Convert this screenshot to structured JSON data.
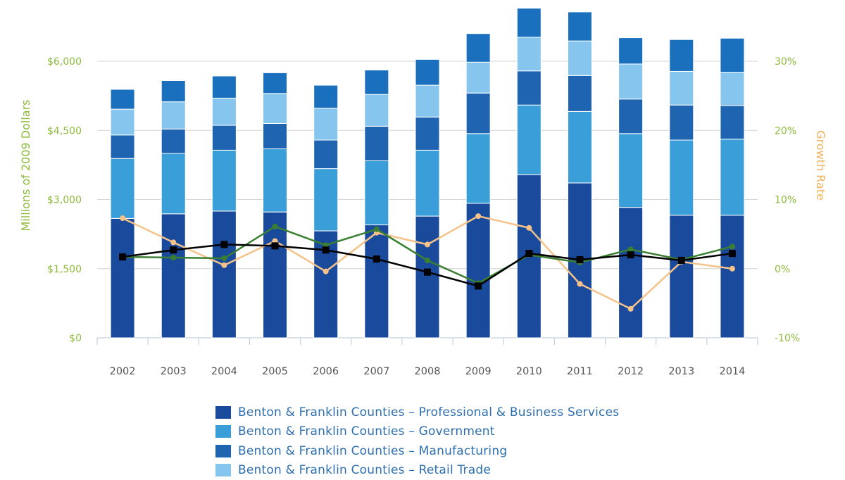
{
  "chart_data": {
    "type": "bar",
    "stacked": true,
    "categories": [
      "2002",
      "2003",
      "2004",
      "2005",
      "2006",
      "2007",
      "2008",
      "2009",
      "2010",
      "2011",
      "2012",
      "2013",
      "2014"
    ],
    "series": [
      {
        "name": "Benton & Franklin Counties – Professional & Business Services",
        "color": "#1a4a9c",
        "values": [
          2590,
          2690,
          2750,
          2730,
          2320,
          2450,
          2640,
          2920,
          3540,
          3360,
          2830,
          2660,
          2660
        ]
      },
      {
        "name": "Benton & Franklin Counties – Government",
        "color": "#3a9fd8",
        "values": [
          1300,
          1310,
          1320,
          1370,
          1350,
          1390,
          1430,
          1510,
          1510,
          1550,
          1600,
          1630,
          1650
        ]
      },
      {
        "name": "Benton & Franklin Counties – Manufacturing",
        "color": "#1f64b0",
        "values": [
          510,
          530,
          540,
          550,
          620,
          750,
          720,
          880,
          740,
          780,
          750,
          760,
          730
        ]
      },
      {
        "name": "Benton & Franklin Counties – Retail Trade",
        "color": "#86c6ee",
        "values": [
          560,
          590,
          590,
          650,
          690,
          690,
          690,
          670,
          730,
          750,
          760,
          730,
          720
        ]
      },
      {
        "name": "",
        "color": "#1a70bd",
        "values": [
          430,
          460,
          480,
          450,
          500,
          530,
          560,
          620,
          630,
          630,
          570,
          690,
          740
        ]
      }
    ],
    "lines": [
      {
        "name": "",
        "color": "#000000",
        "marker": "square",
        "values": [
          1.7,
          2.7,
          3.5,
          3.3,
          2.7,
          1.4,
          -0.5,
          -2.5,
          2.2,
          1.3,
          2.0,
          1.2,
          2.2
        ]
      },
      {
        "name": "",
        "color": "#3a7f32",
        "marker": "circle",
        "values": [
          1.7,
          1.6,
          1.5,
          6.1,
          3.4,
          5.7,
          1.2,
          -2.1,
          2.0,
          0.9,
          2.8,
          1.3,
          3.2
        ]
      },
      {
        "name": "",
        "color": "#f5c38a",
        "marker": "circle",
        "values": [
          7.3,
          3.8,
          0.5,
          4.0,
          -0.4,
          5.2,
          3.5,
          7.6,
          5.9,
          -2.2,
          -5.8,
          1.0,
          0.0
        ]
      }
    ],
    "yaxis_left": {
      "label": "Millions of 2009 Dollars",
      "min": 0,
      "max": 6000,
      "ticks": [
        "$0",
        "$1,500",
        "$3,000",
        "$4,500",
        "$6,000"
      ]
    },
    "yaxis_right": {
      "label": "Growth Rate",
      "min": -10,
      "max": 30,
      "ticks": [
        "-10%",
        "0%",
        "10%",
        "20%",
        "30%"
      ]
    },
    "grid": true,
    "legend_position": "bottom"
  }
}
